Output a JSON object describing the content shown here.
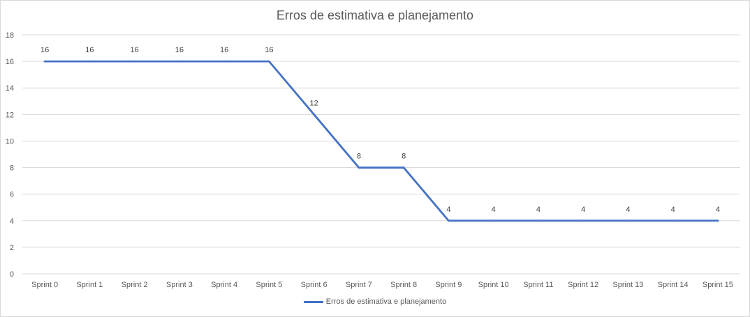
{
  "chart_data": {
    "type": "line",
    "title": "Erros de estimativa e planejamento",
    "xlabel": "",
    "ylabel": "",
    "categories": [
      "Sprint 0",
      "Sprint 1",
      "Sprint 2",
      "Sprint 3",
      "Sprint 4",
      "Sprint 5",
      "Sprint 6",
      "Sprint 7",
      "Sprint 8",
      "Sprint 9",
      "Sprint 10",
      "Sprint 11",
      "Sprint 12",
      "Sprint 13",
      "Sprint 14",
      "Sprint 15"
    ],
    "series": [
      {
        "name": "Erros de estimativa e planejamento",
        "color": "#4472c4",
        "values": [
          16,
          16,
          16,
          16,
          16,
          16,
          12,
          8,
          8,
          4,
          4,
          4,
          4,
          4,
          4,
          4
        ]
      }
    ],
    "ylim": [
      0,
      18
    ],
    "yticks": [
      0,
      2,
      4,
      6,
      8,
      10,
      12,
      14,
      16,
      18
    ],
    "grid": true,
    "data_labels": true,
    "legend_position": "bottom"
  }
}
